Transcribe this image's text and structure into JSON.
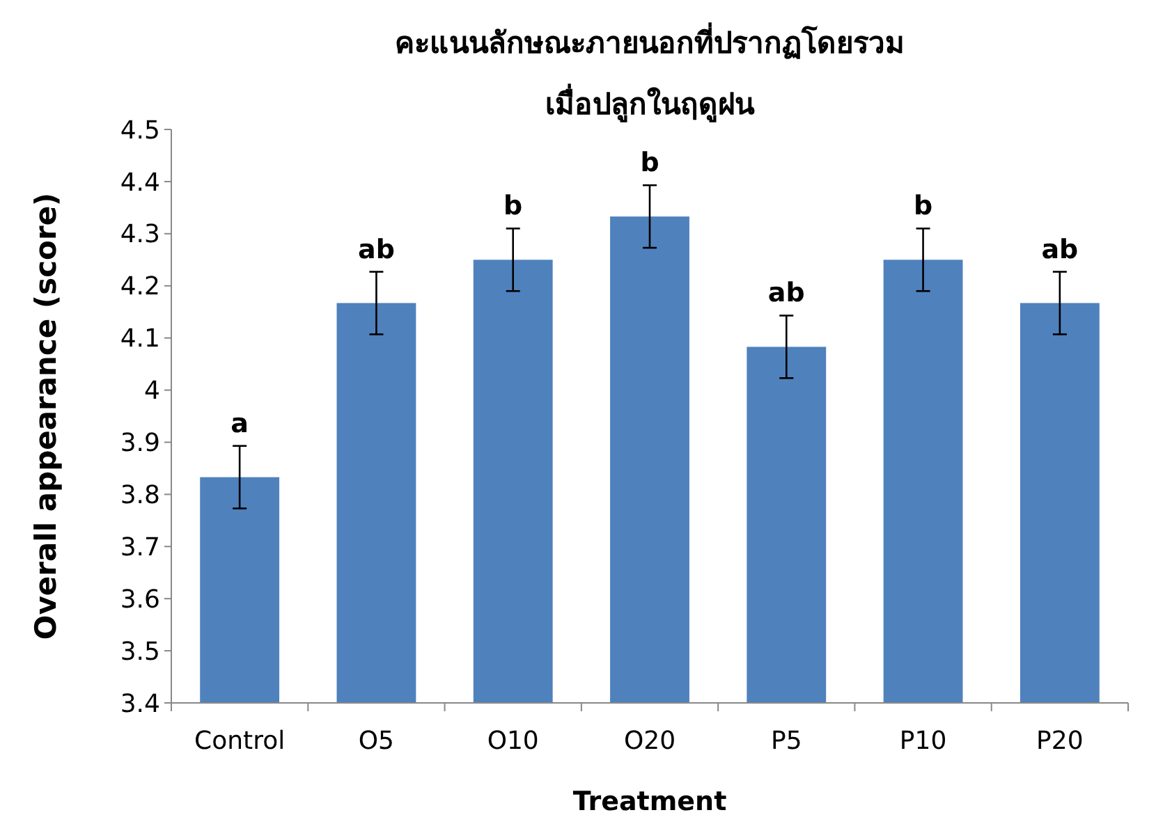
{
  "chart_data": {
    "type": "bar",
    "title": "คะแนนลักษณะภายนอกที่ปรากฏโดยรวม",
    "subtitle": "เมื่อปลูกในฤดูฝน",
    "xlabel": "Treatment",
    "ylabel": "Overall appearance (score)",
    "categories": [
      "Control",
      "O5",
      "O10",
      "O20",
      "P5",
      "P10",
      "P20"
    ],
    "values": [
      3.833,
      4.167,
      4.25,
      4.333,
      4.083,
      4.25,
      4.167
    ],
    "errors": [
      0.06,
      0.06,
      0.06,
      0.06,
      0.06,
      0.06,
      0.06
    ],
    "color": "#4f81bd",
    "ylim": [
      3.4,
      4.5
    ],
    "yticks": [
      3.4,
      3.5,
      3.6,
      3.7,
      3.8,
      3.9,
      4,
      4.1,
      4.2,
      4.3,
      4.4,
      4.5
    ],
    "annotations": [
      {
        "text": "a",
        "x": "Control",
        "y": 3.893
      },
      {
        "text": "ab",
        "x": "O5",
        "y": 4.227
      },
      {
        "text": "b",
        "x": "O10",
        "y": 4.31
      },
      {
        "text": "b",
        "x": "O20",
        "y": 4.393
      },
      {
        "text": "ab",
        "x": "P5",
        "y": 4.143
      },
      {
        "text": "b",
        "x": "P10",
        "y": 4.31
      },
      {
        "text": "ab",
        "x": "P20",
        "y": 4.227
      }
    ]
  }
}
